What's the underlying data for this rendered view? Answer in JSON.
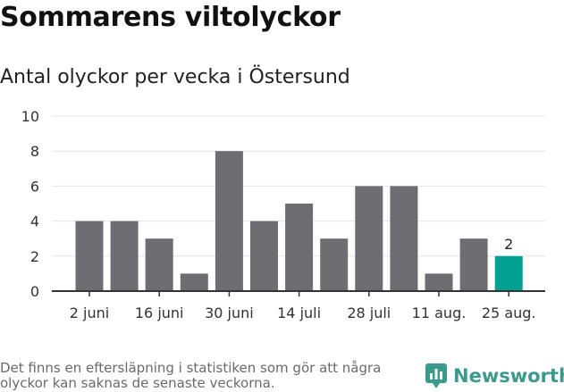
{
  "title": "Sommarens viltolyckor",
  "subtitle": "Antal olyckor per vecka i Östersund",
  "footnote": "Det finns en eftersläpning i statistiken som gör att några olyckor kan saknas de senaste veckorna.",
  "brand": {
    "name": "Newsworthy",
    "icon": "newsworthy-chart-logo-icon",
    "color": "#3a9a8c"
  },
  "chart_data": {
    "type": "bar",
    "values": [
      4,
      4,
      3,
      1,
      8,
      4,
      5,
      3,
      6,
      6,
      1,
      3,
      2
    ],
    "x_tick_labels": [
      "2 juni",
      "16 juni",
      "30 juni",
      "14 juli",
      "28 juli",
      "11 aug.",
      "25 aug."
    ],
    "y_ticks": [
      "0",
      "2",
      "4",
      "6",
      "8",
      "10"
    ],
    "ylim": [
      0,
      10
    ],
    "grid": true,
    "highlight_index": 12,
    "highlight_label": "2",
    "bar_color": "#6e6d72",
    "highlight_color": "#00a093"
  }
}
